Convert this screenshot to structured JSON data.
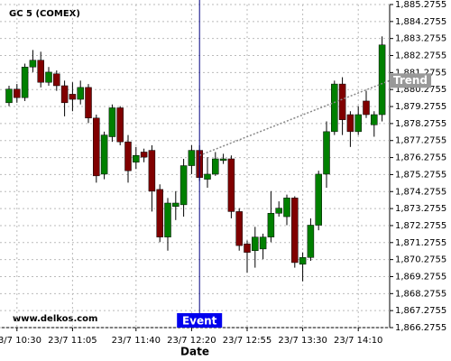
{
  "chart_data": {
    "type": "candlestick",
    "title": "GC 5 (COMEX)",
    "x_label": "Date",
    "watermark": "www.delkos.com",
    "categories": [
      null,
      "23/7 10:30",
      null,
      null,
      null,
      null,
      null,
      null,
      "23/7 11:05",
      null,
      null,
      null,
      null,
      null,
      null,
      null,
      "23/7 11:40",
      null,
      null,
      null,
      null,
      null,
      null,
      "23/7 12:20",
      null,
      null,
      null,
      null,
      null,
      null,
      "23/7 12:55",
      null,
      null,
      null,
      null,
      null,
      null,
      "23/7 13:30",
      null,
      null,
      null,
      null,
      null,
      null,
      "23/7 14:10",
      null,
      null,
      null
    ],
    "open": [
      1879.5,
      1880.3,
      1879.8,
      1881.6,
      1882.0,
      1880.7,
      1881.2,
      1880.5,
      1880.0,
      1879.7,
      1880.4,
      1878.6,
      1875.3,
      1877.5,
      1879.2,
      1877.2,
      1876.0,
      1876.6,
      1876.7,
      1874.4,
      1871.6,
      1873.4,
      1873.5,
      1875.8,
      1876.7,
      1875.0,
      1875.3,
      1876.1,
      1876.2,
      1873.1,
      1871.2,
      1870.8,
      1870.9,
      1871.6,
      1873.0,
      1872.8,
      1873.9,
      1870.0,
      1870.4,
      1872.3,
      1875.3,
      1877.8,
      1880.6,
      1878.8,
      1877.8,
      1879.6,
      1878.2,
      1878.8
    ],
    "high": [
      1880.5,
      1880.6,
      1881.8,
      1882.6,
      1882.5,
      1881.6,
      1881.4,
      1880.8,
      1880.7,
      1880.8,
      1880.6,
      1878.8,
      1877.8,
      1879.4,
      1879.3,
      1877.6,
      1876.9,
      1876.8,
      1877.0,
      1874.7,
      1873.9,
      1874.3,
      1876.2,
      1877.0,
      1877.0,
      1876.3,
      1876.6,
      1876.5,
      1876.4,
      1873.3,
      1871.4,
      1872.2,
      1871.8,
      1874.3,
      1873.7,
      1874.1,
      1874.0,
      1870.7,
      1872.7,
      1875.5,
      1878.4,
      1880.8,
      1881.0,
      1879.0,
      1879.3,
      1880.2,
      1879.0,
      1883.4
    ],
    "low": [
      1879.3,
      1879.5,
      1879.6,
      1881.3,
      1880.4,
      1880.5,
      1880.2,
      1878.7,
      1879.0,
      1879.4,
      1878.3,
      1874.8,
      1875.0,
      1877.2,
      1877.0,
      1874.8,
      1875.6,
      1876.0,
      1873.1,
      1871.3,
      1870.8,
      1872.6,
      1872.8,
      1875.3,
      1874.9,
      1874.5,
      1875.2,
      1875.9,
      1872.7,
      1870.8,
      1869.5,
      1869.8,
      1870.3,
      1871.3,
      1872.8,
      1872.3,
      1869.8,
      1869.0,
      1870.2,
      1872.0,
      1874.5,
      1877.6,
      1877.6,
      1876.9,
      1877.6,
      1878.6,
      1877.5,
      1878.4
    ],
    "close": [
      1880.3,
      1879.8,
      1881.6,
      1882.0,
      1880.7,
      1881.3,
      1880.5,
      1879.5,
      1879.7,
      1880.4,
      1878.6,
      1875.2,
      1877.6,
      1879.2,
      1877.2,
      1875.5,
      1876.4,
      1876.3,
      1874.3,
      1871.6,
      1873.6,
      1873.6,
      1875.8,
      1876.7,
      1875.1,
      1875.3,
      1876.2,
      1876.2,
      1873.1,
      1871.1,
      1870.7,
      1871.6,
      1871.6,
      1873.0,
      1873.3,
      1873.9,
      1870.1,
      1870.4,
      1872.3,
      1875.3,
      1877.8,
      1880.6,
      1878.5,
      1877.8,
      1878.8,
      1878.8,
      1878.8,
      1882.9
    ],
    "up_color": "#008000",
    "down_color": "#800000",
    "ylim": [
      1866.2755,
      1885.2755
    ],
    "yticks": [
      {
        "value": 1866.2755,
        "label": "1,866.2755"
      },
      {
        "value": 1867.2755,
        "label": "1,867.2755"
      },
      {
        "value": 1868.2755,
        "label": "1,868.2755"
      },
      {
        "value": 1869.2755,
        "label": "1,869.2755"
      },
      {
        "value": 1870.2755,
        "label": "1,870.2755"
      },
      {
        "value": 1871.2755,
        "label": "1,871.2755"
      },
      {
        "value": 1872.2755,
        "label": "1,872.2755"
      },
      {
        "value": 1873.2755,
        "label": "1,873.2755"
      },
      {
        "value": 1874.2755,
        "label": "1,874.2755"
      },
      {
        "value": 1875.2755,
        "label": "1,875.2755"
      },
      {
        "value": 1876.2755,
        "label": "1,876.2755"
      },
      {
        "value": 1877.2755,
        "label": "1,877.2755"
      },
      {
        "value": 1878.2755,
        "label": "1,878.2755"
      },
      {
        "value": 1879.2755,
        "label": "1,879.2755"
      },
      {
        "value": 1880.2755,
        "label": "1,880.2755"
      },
      {
        "value": 1881.2755,
        "label": "1,881.2755"
      },
      {
        "value": 1882.2755,
        "label": "1,882.2755"
      },
      {
        "value": 1883.2755,
        "label": "1,883.2755"
      },
      {
        "value": 1884.2755,
        "label": "1,884.2755"
      },
      {
        "value": 1885.2755,
        "label": "1,885.2755"
      }
    ],
    "grid": true,
    "event": {
      "label": "Event"
    },
    "trend": {
      "label": "Trend",
      "values": [
        1876.4,
        1880.8
      ]
    }
  }
}
